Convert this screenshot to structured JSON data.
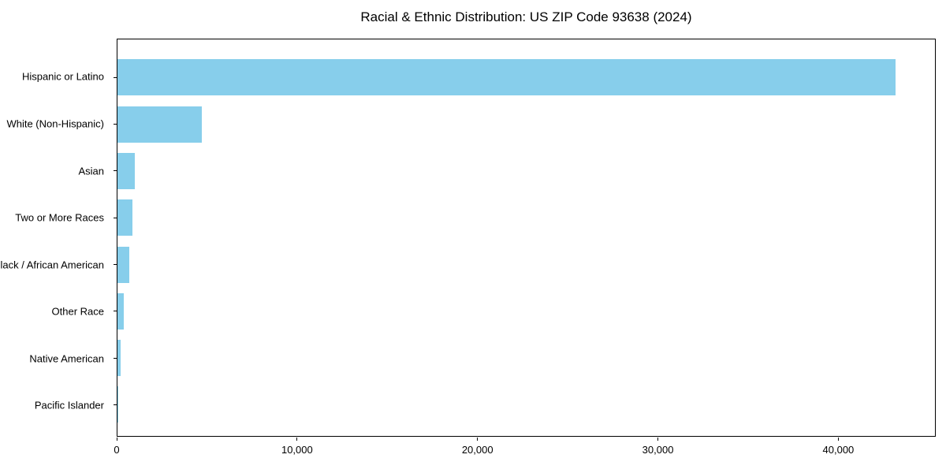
{
  "chart_data": {
    "type": "bar",
    "orientation": "horizontal",
    "title": "Racial & Ethnic Distribution: US ZIP Code 93638 (2024)",
    "categories": [
      "Hispanic or Latino",
      "White (Non-Hispanic)",
      "Asian",
      "Two or More Races",
      "Black / African American",
      "Other Race",
      "Native American",
      "Pacific Islander"
    ],
    "values": [
      43200,
      4700,
      950,
      820,
      640,
      340,
      190,
      40
    ],
    "xlabel": "",
    "ylabel": "",
    "xlim": [
      0,
      45400
    ],
    "x_ticks": [
      0,
      10000,
      20000,
      30000,
      40000
    ],
    "x_tick_labels": [
      "0",
      "10,000",
      "20,000",
      "30,000",
      "40,000"
    ],
    "bar_color": "#87CEEB",
    "background_color": "#ffffff",
    "spine_color": "#000000",
    "grid": false,
    "legend": false
  }
}
